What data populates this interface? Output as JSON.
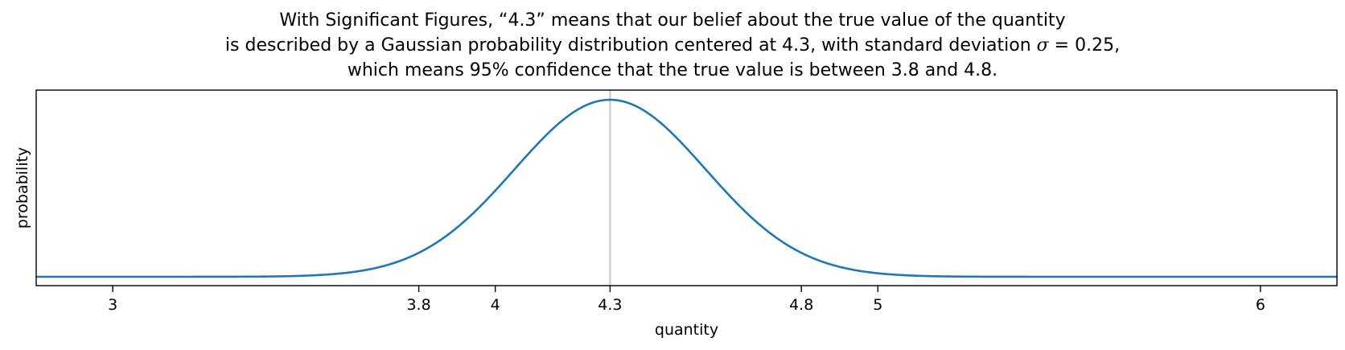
{
  "chart_data": {
    "type": "line",
    "title_lines": [
      "With Significant Figures, “4.3” means that our belief about the true value of the quantity",
      "is described by a Gaussian probability distribution centered at 4.3, with standard deviation σ = 0.25,",
      "which means 95% confidence that the true value is between 3.8 and 4.8."
    ],
    "xlabel": "quantity",
    "ylabel": "probability",
    "xlim": [
      2.8,
      6.2
    ],
    "x_ticks": [
      3,
      3.8,
      4,
      4.3,
      4.8,
      5,
      6
    ],
    "x_tick_labels": [
      "3",
      "3.8",
      "4",
      "4.3",
      "4.8",
      "5",
      "6"
    ],
    "y_ticks": [],
    "grid": false,
    "legend": "none",
    "series": [
      {
        "distribution": "gaussian",
        "mean": 4.3,
        "std": 0.25,
        "color": "#1f77b4"
      }
    ],
    "reference_line": {
      "x": 4.3,
      "color": "#d3d3d3"
    }
  }
}
